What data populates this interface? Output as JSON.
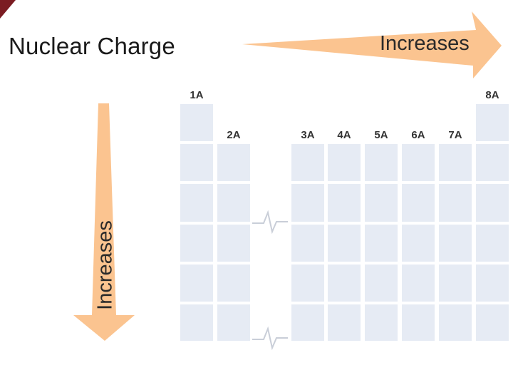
{
  "slide": {
    "title": "Nuclear Charge",
    "horizontal_arrow_label": "Increases",
    "vertical_arrow_label": "Increases"
  },
  "table": {
    "groups": [
      {
        "label": "1A",
        "rows": 6
      },
      {
        "label": "2A",
        "rows": 5
      },
      {
        "label": "3A",
        "rows": 5
      },
      {
        "label": "4A",
        "rows": 5
      },
      {
        "label": "5A",
        "rows": 5
      },
      {
        "label": "6A",
        "rows": 5
      },
      {
        "label": "7A",
        "rows": 5
      },
      {
        "label": "8A",
        "rows": 6
      }
    ]
  },
  "colors": {
    "arrow": "#fbc490",
    "cell": "#e6ebf4",
    "corner": "#7b1c22"
  }
}
